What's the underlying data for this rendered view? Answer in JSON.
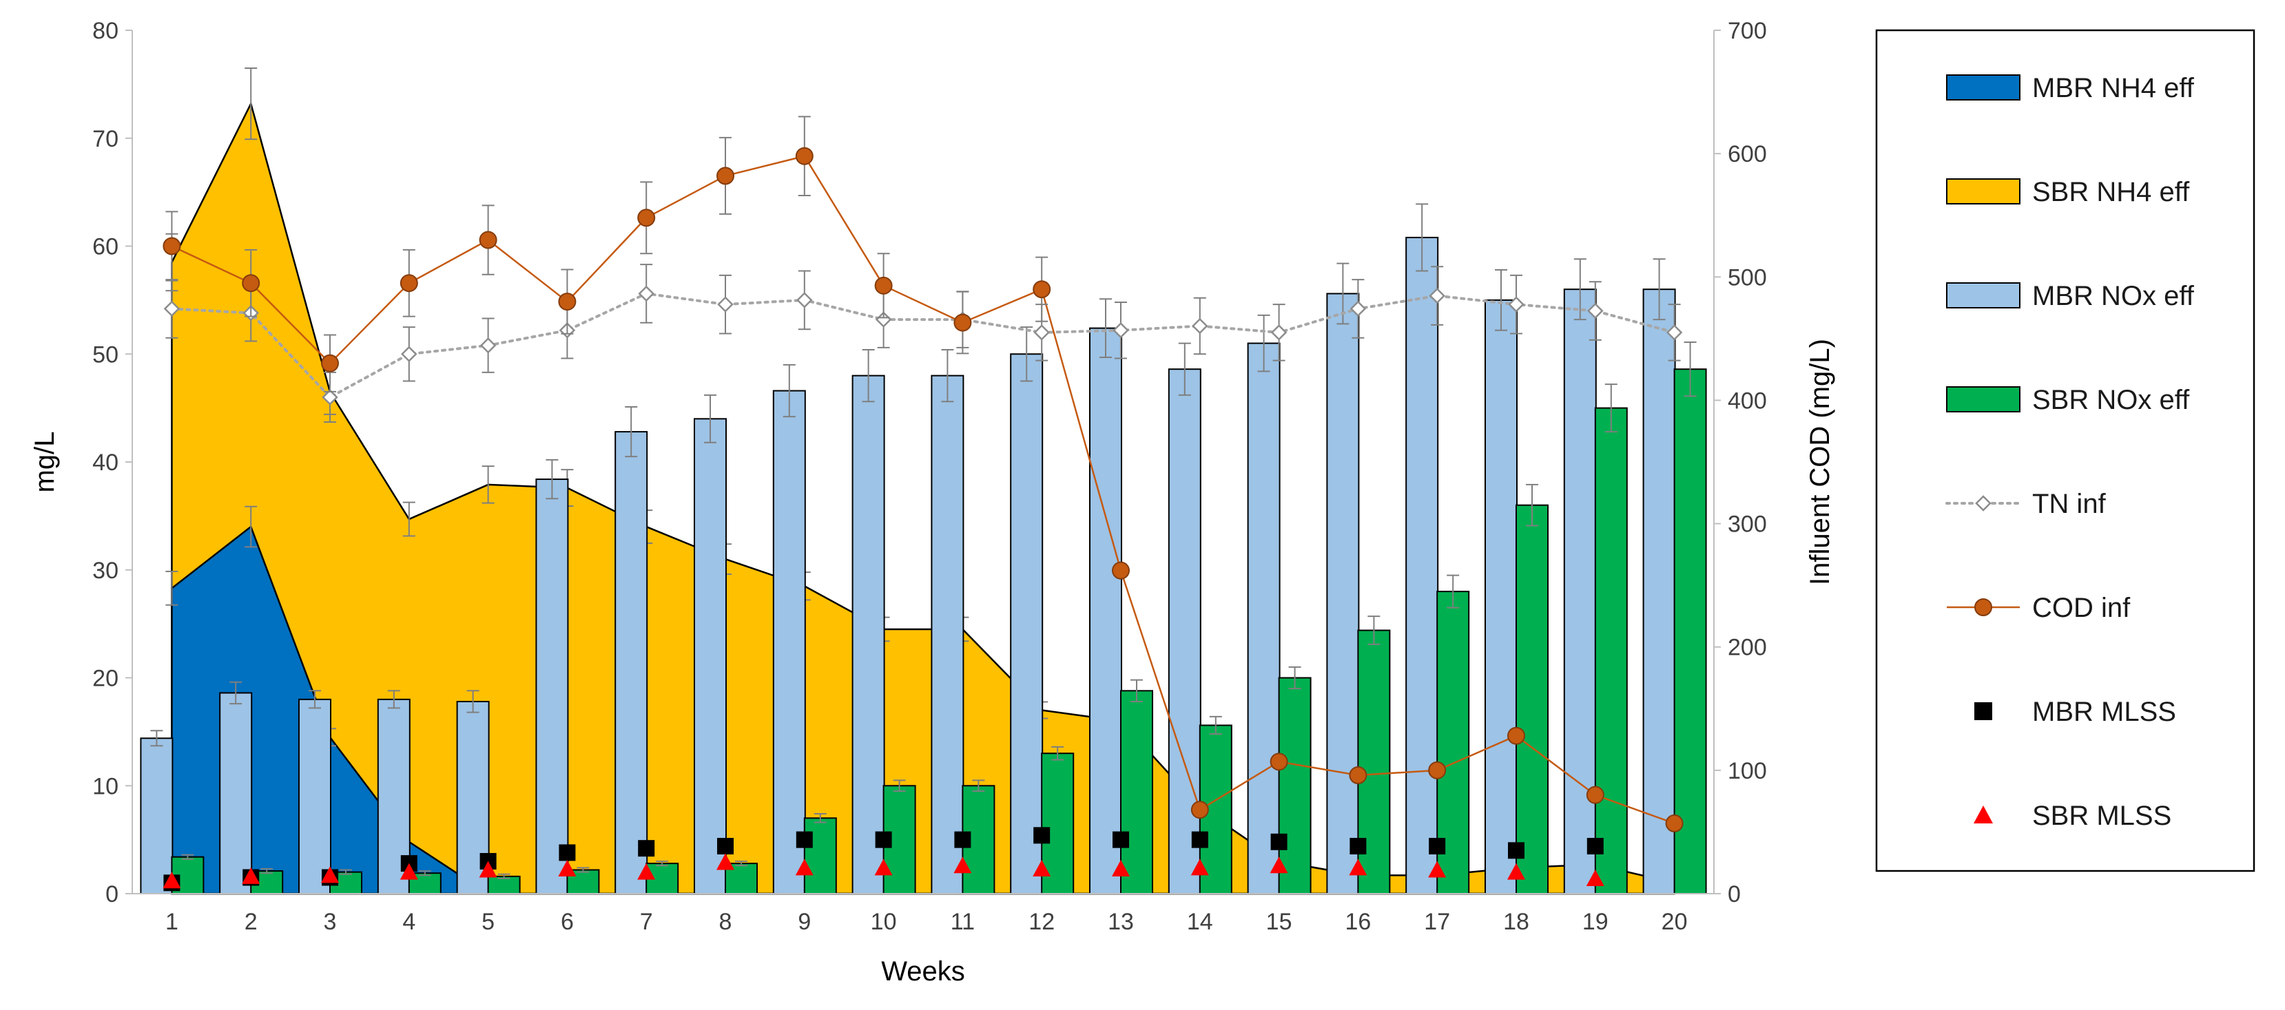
{
  "chart_data": {
    "type": "bar",
    "title": "",
    "xlabel": "Weeks",
    "ylabel": "mg/L",
    "y2label": "Influent COD (mg/L)",
    "ylim": [
      0,
      80
    ],
    "y2lim": [
      0,
      700
    ],
    "yticks": [
      "0",
      "10",
      "20",
      "30",
      "40",
      "50",
      "60",
      "70",
      "80"
    ],
    "y2ticks": [
      "0",
      "100",
      "200",
      "300",
      "400",
      "500",
      "600",
      "700"
    ],
    "categories": [
      "1",
      "2",
      "3",
      "4",
      "5",
      "6",
      "7",
      "8",
      "9",
      "10",
      "11",
      "12",
      "13",
      "14",
      "15",
      "16",
      "17",
      "18",
      "19",
      "20"
    ],
    "legend_position": "right",
    "series": [
      {
        "name": "MBR NH4 eff",
        "kind": "area",
        "axis": "left",
        "color": "#0070C0",
        "values": [
          28.3,
          34.0,
          14.5,
          4.8,
          0,
          0,
          0,
          0,
          0,
          0,
          0,
          0,
          0,
          0,
          0,
          0,
          0,
          0,
          0,
          0
        ]
      },
      {
        "name": "SBR NH4 eff",
        "kind": "area",
        "axis": "left",
        "color": "#FFC000",
        "values": [
          58.5,
          73.2,
          46.5,
          34.7,
          37.9,
          37.6,
          34.0,
          31.0,
          28.5,
          24.5,
          24.5,
          17.0,
          16.0,
          8.0,
          3.0,
          1.7,
          1.7,
          2.4,
          2.7,
          1.0
        ]
      },
      {
        "name": "MBR NOx eff",
        "kind": "bar",
        "axis": "left",
        "color": "#9DC3E6",
        "values": [
          14.4,
          18.6,
          18.0,
          18.0,
          17.8,
          38.4,
          42.8,
          44.0,
          46.6,
          48.0,
          48.0,
          50.0,
          52.4,
          48.6,
          51.0,
          55.6,
          60.8,
          55.0,
          56.0,
          56.0
        ],
        "errors": [
          0.7,
          1.0,
          0.8,
          0.8,
          1.0,
          1.8,
          2.3,
          2.2,
          2.4,
          2.4,
          2.4,
          2.5,
          2.7,
          2.4,
          2.6,
          2.8,
          3.1,
          2.8,
          2.8,
          2.8
        ]
      },
      {
        "name": "SBR NOx eff",
        "kind": "bar",
        "axis": "left",
        "color": "#00B050",
        "values": [
          3.4,
          2.1,
          2.0,
          1.9,
          1.6,
          2.2,
          2.8,
          2.8,
          7.0,
          10.0,
          10.0,
          13.0,
          18.8,
          15.6,
          20.0,
          24.4,
          28.0,
          36.0,
          45.0,
          48.6
        ],
        "errors": [
          0.2,
          0.2,
          0.2,
          0.2,
          0.2,
          0.2,
          0.2,
          0.2,
          0.4,
          0.5,
          0.5,
          0.6,
          1.0,
          0.8,
          1.0,
          1.3,
          1.5,
          1.9,
          2.2,
          2.5
        ]
      },
      {
        "name": "TN inf",
        "kind": "line",
        "axis": "left",
        "color": "#A6A6A6",
        "values": [
          54.2,
          53.8,
          46.0,
          50.0,
          50.8,
          52.2,
          55.6,
          54.6,
          55.0,
          53.2,
          53.2,
          52.0,
          52.2,
          52.6,
          52.0,
          54.2,
          55.4,
          54.6,
          54.0,
          52.0
        ],
        "errors": [
          2.7,
          2.6,
          2.3,
          2.5,
          2.5,
          2.6,
          2.7,
          2.7,
          2.7,
          2.6,
          2.6,
          2.6,
          2.6,
          2.6,
          2.6,
          2.7,
          2.7,
          2.7,
          2.7,
          2.6
        ]
      },
      {
        "name": "COD inf",
        "kind": "line",
        "axis": "right",
        "color": "#C55A11",
        "values": [
          525,
          495,
          430,
          495,
          530,
          480,
          548,
          582,
          598,
          493,
          463,
          490,
          262,
          68,
          107,
          96,
          100,
          128,
          80,
          57
        ],
        "errors": [
          28,
          27,
          23,
          27,
          28,
          26,
          29,
          31,
          32,
          26,
          25,
          26,
          0,
          0,
          0,
          0,
          0,
          0,
          0,
          0
        ]
      },
      {
        "name": "MBR MLSS",
        "kind": "marker",
        "axis": "left",
        "color": "#000000",
        "values": [
          1.0,
          1.5,
          1.5,
          2.8,
          3.0,
          3.8,
          4.2,
          4.4,
          5.0,
          5.0,
          5.0,
          5.4,
          5.0,
          5.0,
          4.8,
          4.4,
          4.4,
          4.0,
          4.4,
          null
        ]
      },
      {
        "name": "SBR MLSS",
        "kind": "marker",
        "axis": "left",
        "color": "#FF0000",
        "values": [
          1.2,
          1.6,
          1.7,
          2.0,
          2.2,
          2.3,
          2.0,
          2.9,
          2.4,
          2.4,
          2.6,
          2.3,
          2.3,
          2.4,
          2.6,
          2.4,
          2.2,
          2.0,
          1.4,
          null
        ]
      }
    ]
  }
}
